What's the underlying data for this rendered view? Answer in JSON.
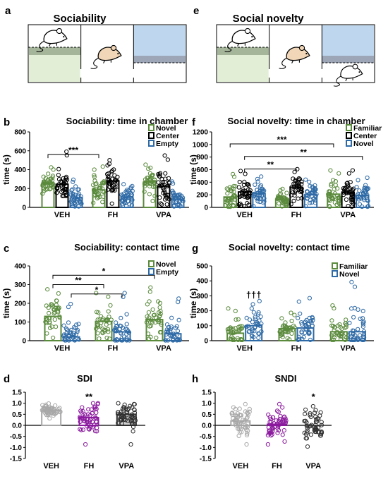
{
  "colors": {
    "novel": "#5a8a3c",
    "center": "#000000",
    "empty": "#2e6aa6",
    "familiar": "#5a8a3c",
    "veh": "#a8a8a8",
    "fh": "#8b1a9e",
    "vpa": "#303030",
    "green_zone": "#e2efd6",
    "blue_zone": "#bed7ee",
    "green_band": "#a5b59a",
    "blue_band": "#9da6b7"
  },
  "arenas": [
    {
      "letter": "a",
      "title": "Sociability"
    },
    {
      "letter": "e",
      "title": "Social novelty"
    }
  ],
  "chart_data": [
    {
      "panel": "b",
      "type": "bar",
      "title": "Sociability: time in chamber",
      "ylabel": "time (s)",
      "ylim": [
        0,
        800
      ],
      "yticks": [
        0,
        200,
        400,
        600,
        800
      ],
      "categories": [
        "VEH",
        "FH",
        "VPA"
      ],
      "legend_position": "top-right",
      "series": [
        {
          "name": "Novel",
          "color_key": "novel",
          "values": [
            260,
            185,
            270
          ],
          "spread": [
            [
              140,
              430
            ],
            [
              40,
              440
            ],
            [
              60,
              460
            ]
          ]
        },
        {
          "name": "Center",
          "color_key": "center",
          "values": [
            245,
            280,
            225
          ],
          "spread": [
            [
              120,
              600
            ],
            [
              30,
              510
            ],
            [
              20,
              560
            ]
          ]
        },
        {
          "name": "Empty",
          "color_key": "empty",
          "values": [
            100,
            110,
            85
          ],
          "spread": [
            [
              10,
              300
            ],
            [
              10,
              250
            ],
            [
              10,
              280
            ]
          ]
        }
      ],
      "significance": [
        {
          "label": "***",
          "from": [
            0,
            0
          ],
          "to": [
            1,
            0
          ],
          "y": 560
        }
      ]
    },
    {
      "panel": "f",
      "type": "bar",
      "title": "Social novelty: time in chamber",
      "ylabel": "time (s)",
      "ylim": [
        0,
        1200
      ],
      "yticks": [
        0,
        200,
        400,
        600,
        800,
        1000,
        1200
      ],
      "categories": [
        "VEH",
        "FH",
        "VPA"
      ],
      "legend_position": "top-right",
      "series": [
        {
          "name": "Familiar",
          "color_key": "familiar",
          "values": [
            165,
            130,
            210
          ],
          "spread": [
            [
              10,
              540
            ],
            [
              10,
              300
            ],
            [
              10,
              600
            ]
          ]
        },
        {
          "name": "Center",
          "color_key": "center",
          "values": [
            245,
            320,
            240
          ],
          "spread": [
            [
              20,
              590
            ],
            [
              40,
              620
            ],
            [
              10,
              600
            ]
          ]
        },
        {
          "name": "Novel",
          "color_key": "empty",
          "values": [
            220,
            200,
            190
          ],
          "spread": [
            [
              10,
              500
            ],
            [
              10,
              450
            ],
            [
              10,
              480
            ]
          ]
        }
      ],
      "significance": [
        {
          "label": "***",
          "from": [
            0,
            0
          ],
          "to": [
            2,
            0
          ],
          "y": 1010
        },
        {
          "label": "**",
          "from": [
            0,
            1
          ],
          "to": [
            2,
            2
          ],
          "y": 810
        },
        {
          "label": "**",
          "from": [
            0,
            1
          ],
          "to": [
            1,
            1
          ],
          "y": 610
        }
      ]
    },
    {
      "panel": "c",
      "type": "bar",
      "title": "Sociability: contact time",
      "ylabel": "time (s)",
      "ylim": [
        0,
        400
      ],
      "yticks": [
        0,
        100,
        200,
        300,
        400
      ],
      "categories": [
        "VEH",
        "FH",
        "VPA"
      ],
      "legend_position": "top-right",
      "series": [
        {
          "name": "Novel",
          "color_key": "novel",
          "values": [
            130,
            103,
            113
          ],
          "spread": [
            [
              10,
              280
            ],
            [
              10,
              260
            ],
            [
              10,
              290
            ]
          ]
        },
        {
          "name": "Empty",
          "color_key": "empty",
          "values": [
            20,
            47,
            37
          ],
          "spread": [
            [
              2,
              200
            ],
            [
              2,
              260
            ],
            [
              2,
              230
            ]
          ]
        }
      ],
      "significance": [
        {
          "label": "*",
          "from": [
            0,
            0
          ],
          "to": [
            2,
            0
          ],
          "y": 350
        },
        {
          "label": "**",
          "from": [
            0,
            0
          ],
          "to": [
            1,
            0
          ],
          "y": 300
        },
        {
          "label": "*",
          "from": [
            0,
            1
          ],
          "to": [
            1,
            1
          ],
          "y": 250
        }
      ]
    },
    {
      "panel": "g",
      "type": "bar",
      "title": "Social novelty: contact time",
      "ylabel": "time (s)",
      "ylim": [
        0,
        500
      ],
      "yticks": [
        0,
        100,
        200,
        300,
        400,
        500
      ],
      "categories": [
        "VEH",
        "FH",
        "VPA"
      ],
      "legend_position": "top-right",
      "series": [
        {
          "name": "Familiar",
          "color_key": "familiar",
          "values": [
            50,
            80,
            60
          ],
          "spread": [
            [
              5,
              220
            ],
            [
              5,
              190
            ],
            [
              5,
              240
            ]
          ]
        },
        {
          "name": "Novel",
          "color_key": "empty",
          "values": [
            100,
            85,
            60
          ],
          "spread": [
            [
              5,
              270
            ],
            [
              5,
              290
            ],
            [
              5,
              400
            ]
          ]
        }
      ],
      "annotations": [
        {
          "text": "†††",
          "group": 0,
          "series": 1,
          "y": 285
        }
      ]
    },
    {
      "panel": "d",
      "type": "bar",
      "title": "SDI",
      "ylabel": "",
      "ylim": [
        -1.5,
        1.5
      ],
      "yticks": [
        -1.5,
        -1.0,
        -0.5,
        0.0,
        0.5,
        1.0,
        1.5
      ],
      "tick_format": 1,
      "categories": [
        "VEH",
        "FH",
        "VPA"
      ],
      "series": [
        {
          "name": "",
          "color_keys": [
            "veh",
            "fh",
            "vpa"
          ],
          "bar_fills": [
            "#ffffff",
            "#ffffff",
            "#d0d0d0"
          ],
          "values": [
            0.68,
            0.35,
            0.5
          ],
          "spread": [
            [
              0.3,
              1.0
            ],
            [
              -0.9,
              1.0
            ],
            [
              -0.9,
              1.0
            ]
          ]
        }
      ],
      "annotations": [
        {
          "text": "**",
          "group": 1,
          "y": 1.15
        }
      ]
    },
    {
      "panel": "h",
      "type": "bar",
      "title": "SNDI",
      "ylabel": "",
      "ylim": [
        -1.5,
        1.5
      ],
      "yticks": [
        -1.5,
        -1.0,
        -0.5,
        0.0,
        0.5,
        1.0,
        1.5
      ],
      "tick_format": 1,
      "categories": [
        "VEH",
        "FH",
        "VPA"
      ],
      "series": [
        {
          "name": "",
          "color_keys": [
            "veh",
            "fh",
            "vpa"
          ],
          "bar_fills": [
            "#ffffff",
            "#ffffff",
            "#ffffff"
          ],
          "values": [
            0.2,
            0.05,
            0.0
          ],
          "spread": [
            [
              -0.9,
              1.0
            ],
            [
              -0.9,
              1.0
            ],
            [
              -1.0,
              0.9
            ]
          ]
        }
      ],
      "annotations": [
        {
          "text": "*",
          "group": 2,
          "y": 1.15
        }
      ]
    }
  ]
}
